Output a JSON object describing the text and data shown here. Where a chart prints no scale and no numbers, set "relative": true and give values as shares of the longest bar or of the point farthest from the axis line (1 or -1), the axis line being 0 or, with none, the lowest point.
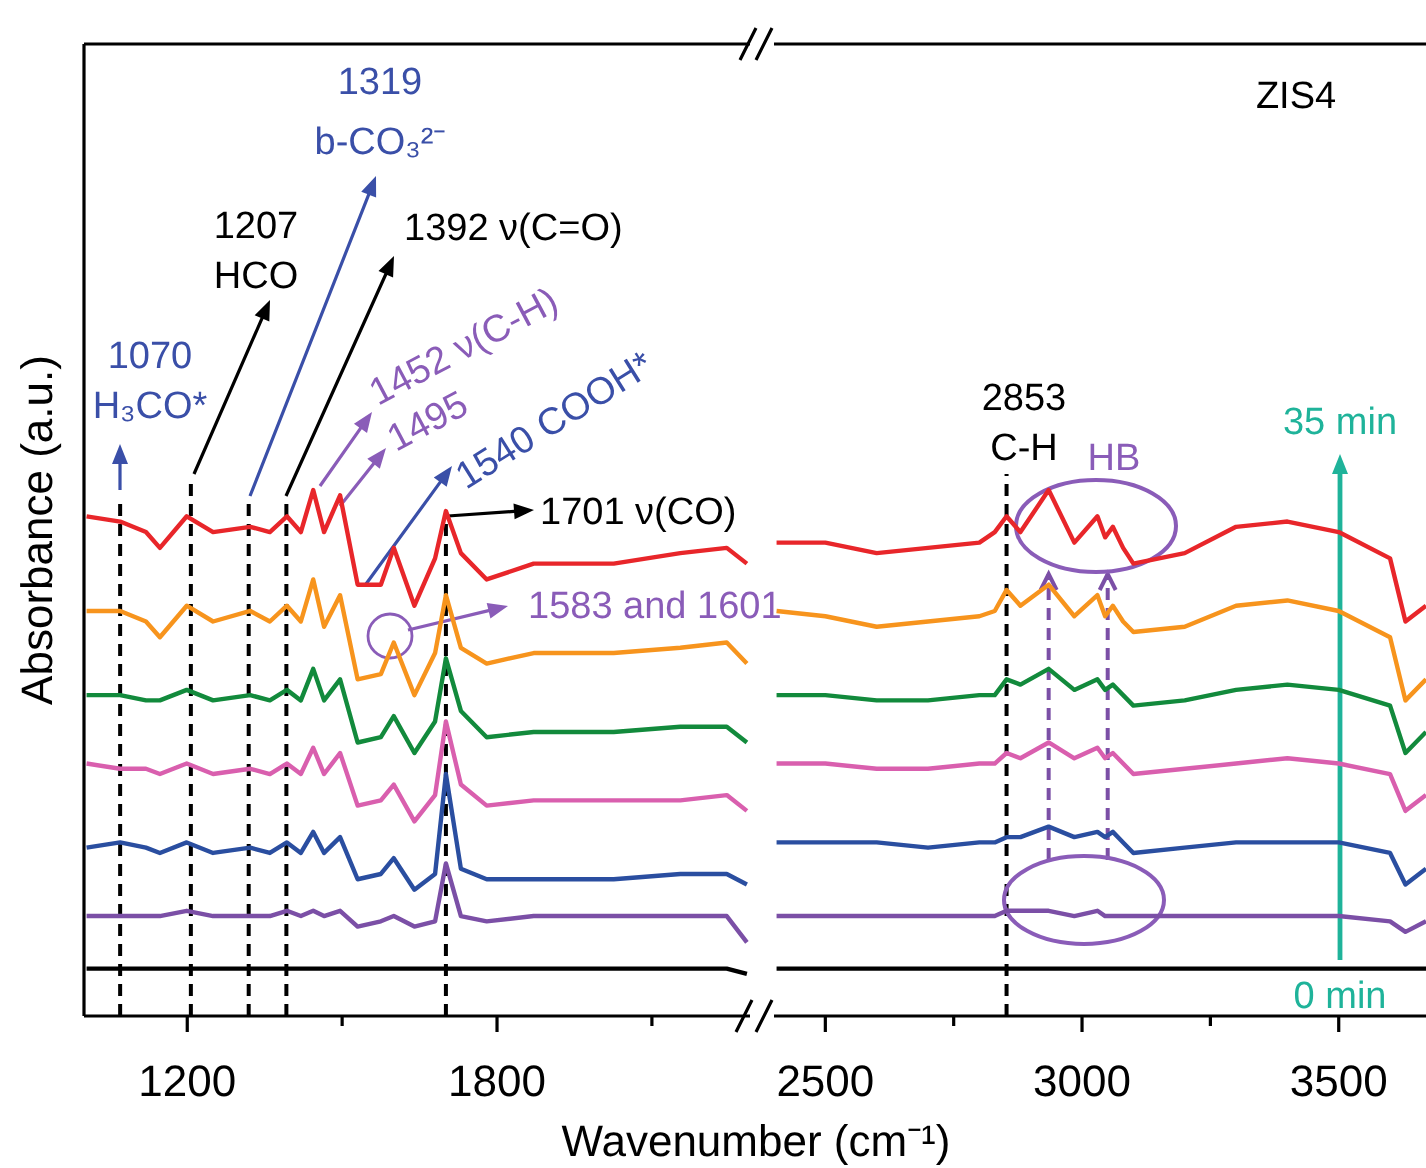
{
  "chart_data": [
    {
      "type": "line",
      "relative": true,
      "xlabel": "Wavenumber (cm⁻¹)",
      "ylabel": "Absorbance (a.u.)",
      "xlim": [
        1000,
        2290
      ],
      "xticks": [
        1200,
        {
          "value": 1500,
          "label": null
        },
        1800,
        {
          "value": 2100,
          "label": null
        }
      ],
      "tick_labels": "x",
      "x": [
        1005,
        1070,
        1120,
        1147,
        1199,
        1250,
        1322,
        1360,
        1393,
        1420,
        1444,
        1465,
        1496,
        1530,
        1575,
        1600,
        1640,
        1680,
        1701,
        1730,
        1780,
        1871,
        2026,
        2155,
        2245,
        2284
      ],
      "series": [
        {
          "color": "#000000",
          "values": [
            0.09,
            0.09,
            0.09,
            0.09,
            0.09,
            0.09,
            0.09,
            0.09,
            0.09,
            0.09,
            0.09,
            0.09,
            0.09,
            0.09,
            0.09,
            0.09,
            0.09,
            0.09,
            0.09,
            0.09,
            0.09,
            0.09,
            0.09,
            0.09,
            0.09,
            0.08
          ]
        },
        {
          "color": "#7b4fa6",
          "values": [
            0.19,
            0.19,
            0.19,
            0.19,
            0.2,
            0.19,
            0.19,
            0.19,
            0.2,
            0.19,
            0.2,
            0.19,
            0.2,
            0.17,
            0.18,
            0.19,
            0.17,
            0.18,
            0.29,
            0.19,
            0.18,
            0.19,
            0.19,
            0.19,
            0.19,
            0.14
          ]
        },
        {
          "color": "#2a4ea0",
          "values": [
            0.32,
            0.33,
            0.32,
            0.31,
            0.33,
            0.31,
            0.32,
            0.31,
            0.33,
            0.31,
            0.35,
            0.31,
            0.34,
            0.26,
            0.27,
            0.3,
            0.24,
            0.27,
            0.46,
            0.28,
            0.26,
            0.26,
            0.26,
            0.27,
            0.27,
            0.25
          ]
        },
        {
          "color": "#d95fae",
          "values": [
            0.48,
            0.47,
            0.47,
            0.46,
            0.48,
            0.46,
            0.47,
            0.46,
            0.48,
            0.46,
            0.51,
            0.46,
            0.5,
            0.4,
            0.41,
            0.44,
            0.37,
            0.42,
            0.56,
            0.44,
            0.4,
            0.41,
            0.41,
            0.41,
            0.42,
            0.39
          ]
        },
        {
          "color": "#128a3c",
          "values": [
            0.61,
            0.61,
            0.6,
            0.6,
            0.62,
            0.6,
            0.61,
            0.6,
            0.62,
            0.6,
            0.66,
            0.6,
            0.64,
            0.52,
            0.53,
            0.57,
            0.5,
            0.56,
            0.68,
            0.58,
            0.53,
            0.54,
            0.54,
            0.55,
            0.55,
            0.52
          ]
        },
        {
          "color": "#f7941d",
          "values": [
            0.77,
            0.77,
            0.75,
            0.72,
            0.78,
            0.75,
            0.77,
            0.75,
            0.78,
            0.75,
            0.83,
            0.74,
            0.8,
            0.64,
            0.65,
            0.71,
            0.61,
            0.69,
            0.8,
            0.7,
            0.67,
            0.69,
            0.69,
            0.7,
            0.71,
            0.67
          ]
        },
        {
          "color": "#e8262a",
          "values": [
            0.95,
            0.94,
            0.92,
            0.89,
            0.95,
            0.92,
            0.93,
            0.92,
            0.95,
            0.92,
            1,
            0.92,
            0.99,
            0.82,
            0.82,
            0.89,
            0.78,
            0.87,
            0.96,
            0.88,
            0.83,
            0.86,
            0.86,
            0.88,
            0.89,
            0.86
          ]
        }
      ],
      "ref_lines": [
        {
          "axis": "x",
          "value": 1070,
          "color": "#000000",
          "line_style": "dashed"
        },
        {
          "axis": "x",
          "value": 1207,
          "color": "#000000",
          "line_style": "dashed"
        },
        {
          "axis": "x",
          "value": 1319,
          "color": "#000000",
          "line_style": "dashed"
        },
        {
          "axis": "x",
          "value": 1392,
          "color": "#000000",
          "line_style": "dashed"
        },
        {
          "axis": "x",
          "value": 1701,
          "color": "#000000",
          "line_style": "dashed"
        }
      ],
      "annotations": [
        "1070\nH₃CO*",
        "1207\nHCO",
        "1319\nb-CO₃²⁻",
        "1392 ν(C=O)",
        "1452 ν(C-H)",
        "1495",
        "1540 COOH*",
        "1701 ν(CO)",
        "1583 and 1601"
      ]
    },
    {
      "type": "line",
      "relative": true,
      "xlim": [
        2400,
        3670
      ],
      "xticks": [
        2500,
        {
          "value": 2750,
          "label": null
        },
        3000,
        {
          "value": 3250,
          "label": null
        },
        3500
      ],
      "tick_labels": "x",
      "x": [
        2405,
        2500,
        2600,
        2700,
        2800,
        2830,
        2853,
        2880,
        2935,
        2985,
        3030,
        3045,
        3060,
        3080,
        3100,
        3200,
        3300,
        3400,
        3500,
        3600,
        3630,
        3670
      ],
      "series": [
        {
          "color": "#000000",
          "values": [
            0.09,
            0.09,
            0.09,
            0.09,
            0.09,
            0.09,
            0.09,
            0.09,
            0.09,
            0.09,
            0.09,
            0.09,
            0.09,
            0.09,
            0.09,
            0.09,
            0.09,
            0.09,
            0.09,
            0.09,
            0.09,
            0.09
          ]
        },
        {
          "color": "#7b4fa6",
          "values": [
            0.19,
            0.19,
            0.19,
            0.19,
            0.19,
            0.19,
            0.2,
            0.2,
            0.2,
            0.19,
            0.2,
            0.19,
            0.19,
            0.19,
            0.19,
            0.19,
            0.19,
            0.19,
            0.19,
            0.18,
            0.16,
            0.18
          ]
        },
        {
          "color": "#2a4ea0",
          "values": [
            0.33,
            0.33,
            0.33,
            0.32,
            0.33,
            0.33,
            0.34,
            0.34,
            0.36,
            0.34,
            0.35,
            0.34,
            0.35,
            0.33,
            0.31,
            0.32,
            0.33,
            0.33,
            0.33,
            0.31,
            0.25,
            0.28
          ]
        },
        {
          "color": "#d95fae",
          "values": [
            0.48,
            0.48,
            0.47,
            0.47,
            0.48,
            0.48,
            0.5,
            0.49,
            0.52,
            0.49,
            0.51,
            0.49,
            0.5,
            0.48,
            0.46,
            0.47,
            0.48,
            0.49,
            0.48,
            0.46,
            0.39,
            0.42
          ]
        },
        {
          "color": "#128a3c",
          "values": [
            0.61,
            0.61,
            0.6,
            0.6,
            0.61,
            0.61,
            0.64,
            0.63,
            0.66,
            0.62,
            0.64,
            0.62,
            0.63,
            0.61,
            0.59,
            0.6,
            0.62,
            0.63,
            0.62,
            0.59,
            0.5,
            0.54
          ]
        },
        {
          "color": "#f7941d",
          "values": [
            0.77,
            0.76,
            0.74,
            0.75,
            0.76,
            0.77,
            0.81,
            0.78,
            0.82,
            0.76,
            0.8,
            0.76,
            0.78,
            0.75,
            0.73,
            0.74,
            0.78,
            0.79,
            0.77,
            0.72,
            0.6,
            0.64
          ]
        },
        {
          "color": "#e8262a",
          "values": [
            0.9,
            0.9,
            0.88,
            0.89,
            0.9,
            0.92,
            0.95,
            0.92,
            1,
            0.9,
            0.95,
            0.91,
            0.93,
            0.89,
            0.86,
            0.88,
            0.93,
            0.94,
            0.92,
            0.87,
            0.75,
            0.78
          ]
        }
      ],
      "ref_lines": [
        {
          "axis": "x",
          "value": 2853,
          "color": "#000000",
          "line_style": "dashed"
        },
        {
          "axis": "x",
          "value": 2935,
          "color": "#7b4fa6",
          "line_style": "dashed"
        },
        {
          "axis": "x",
          "value": 3050,
          "color": "#7b4fa6",
          "line_style": "dashed"
        }
      ],
      "annotations": [
        "2853\nC-H",
        "HB",
        "ZIS4",
        "35 min",
        "0 min"
      ]
    }
  ]
}
